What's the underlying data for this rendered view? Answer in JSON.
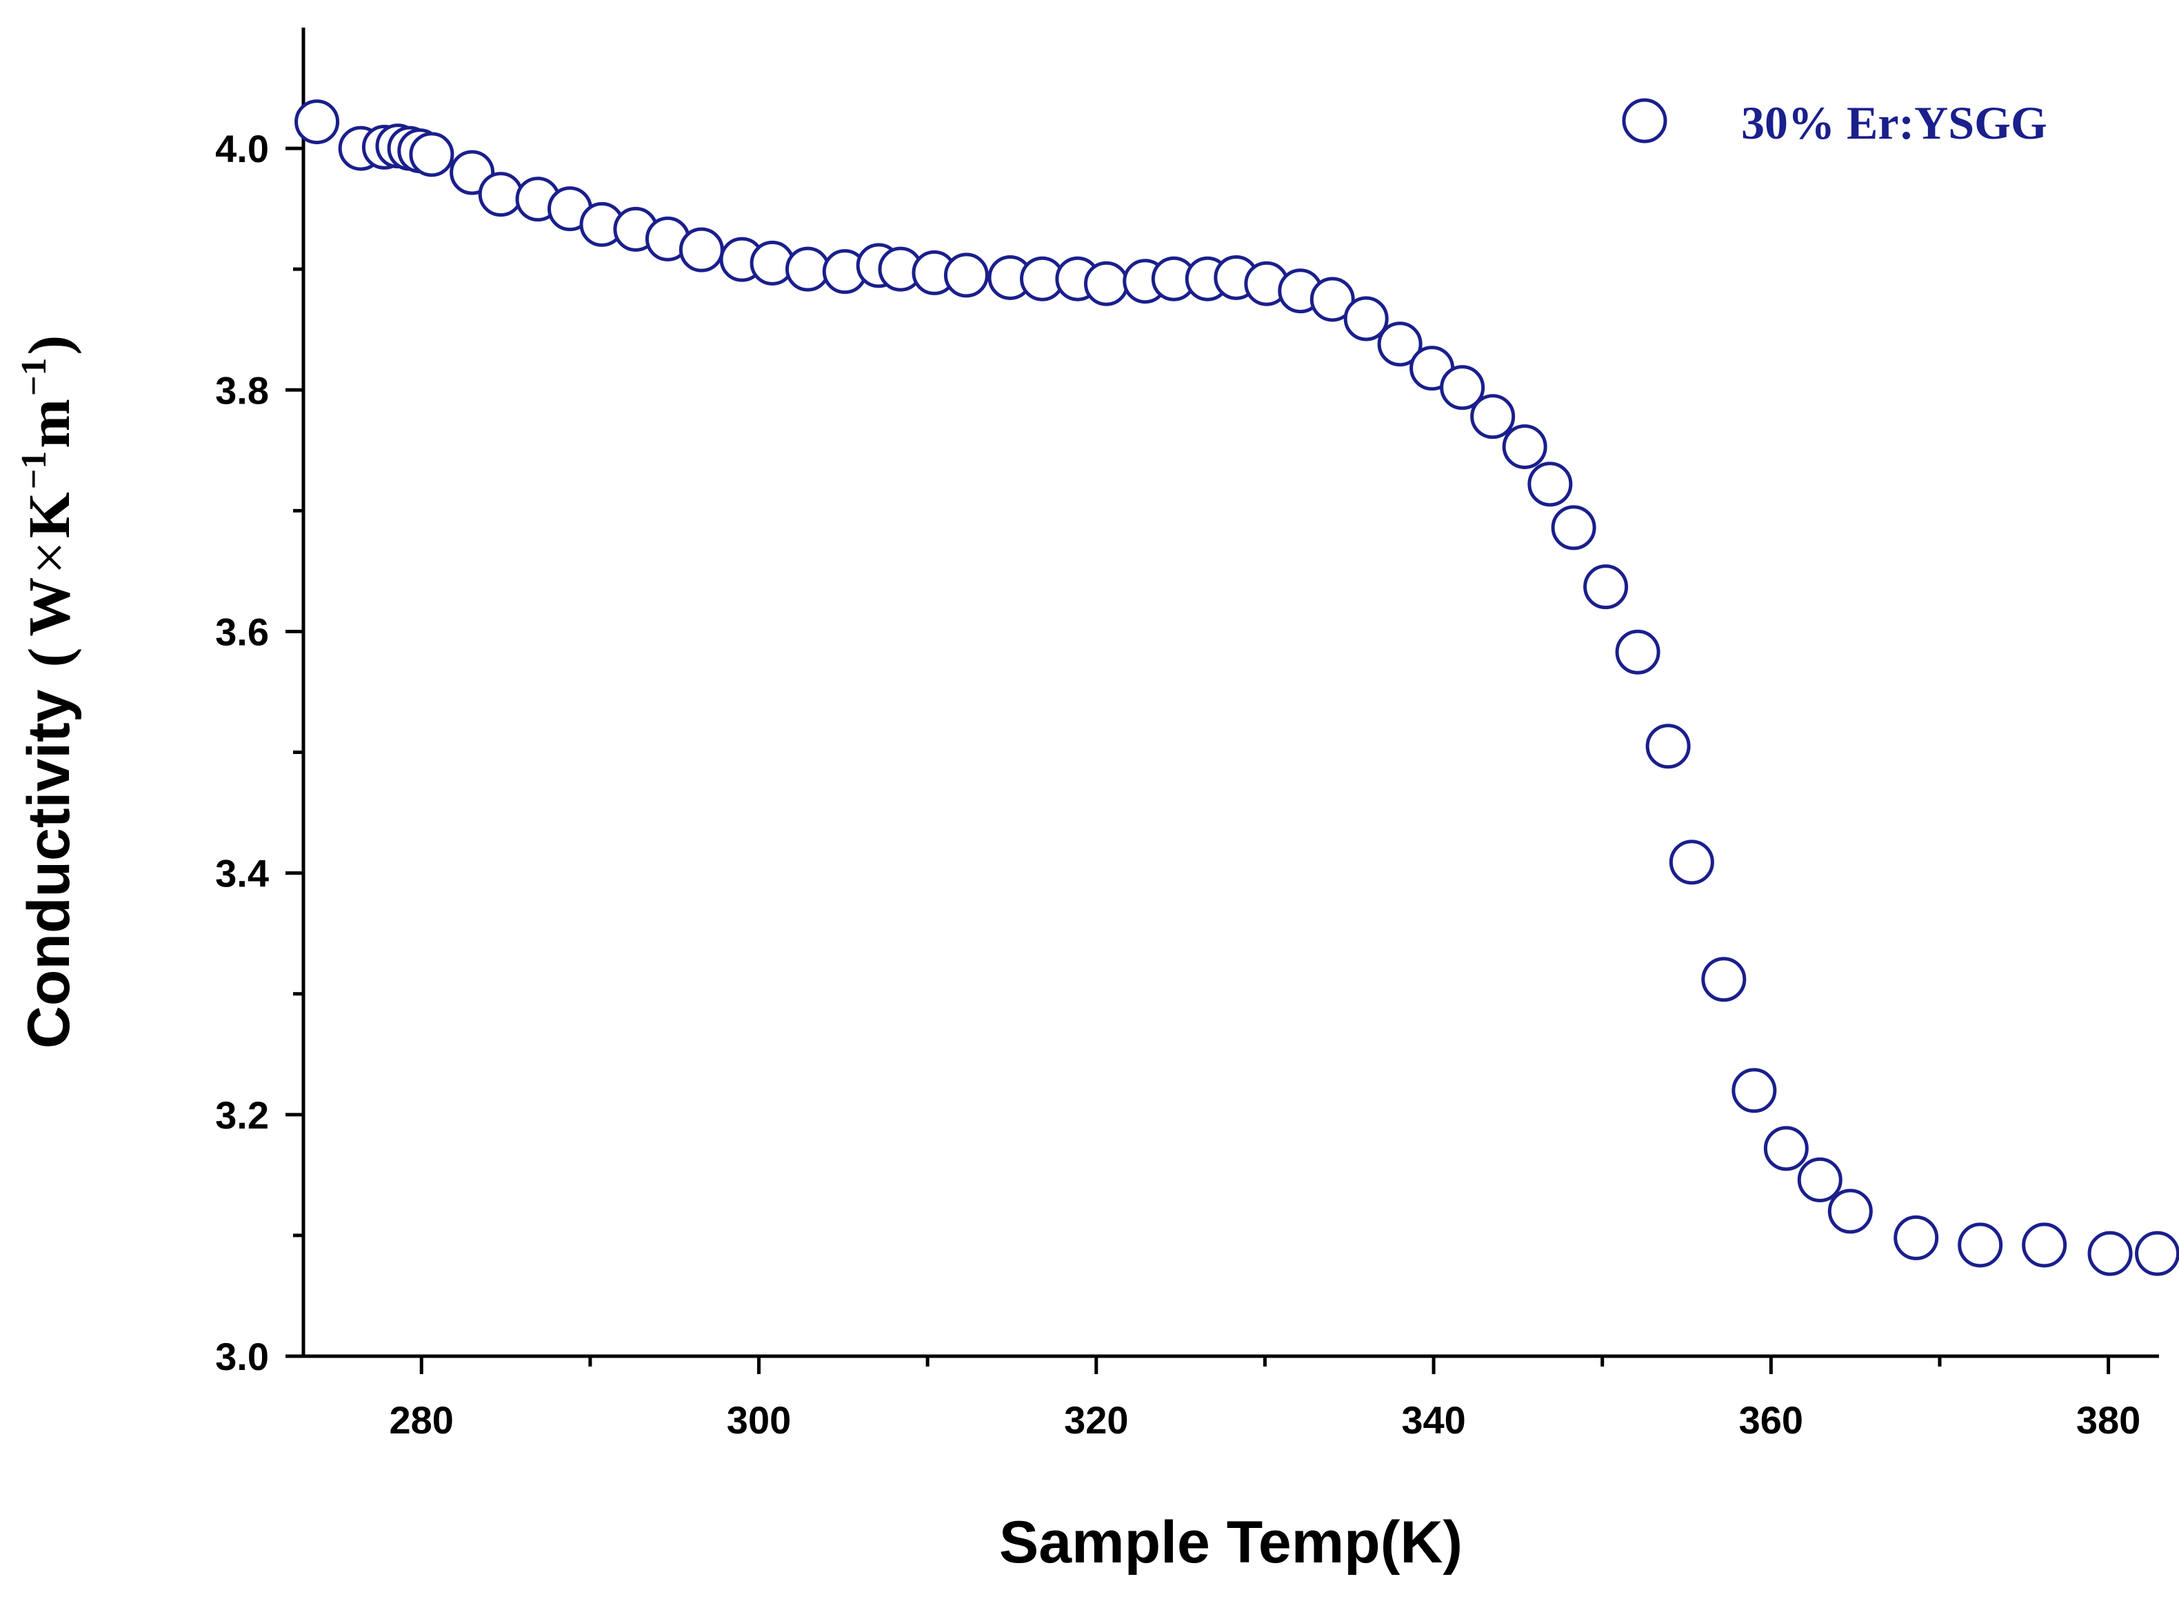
{
  "chart_data": {
    "type": "scatter",
    "title": "",
    "xlabel": "Sample Temp(K)",
    "ylabel": "Conductivity",
    "ylabel_unit": {
      "open": "(",
      "w": "W",
      "times": "×",
      "k": "K",
      "k_exp": "−1",
      "m": "m",
      "m_exp": "−1",
      "close": ")"
    },
    "xlim": [
      273,
      383
    ],
    "ylim": [
      3.0,
      4.1
    ],
    "xticks": [
      280,
      300,
      320,
      340,
      360,
      380
    ],
    "yticks": [
      3.0,
      3.2,
      3.4,
      3.6,
      3.8,
      4.0
    ],
    "ytick_labels": [
      "3.0",
      "3.2",
      "3.4",
      "3.6",
      "3.8",
      "4.0"
    ],
    "legend_position": "top-right",
    "marker_color": "#1a1f8c",
    "series": [
      {
        "name": "30% Er:YSGG",
        "marker": "open-circle",
        "x": [
          273.8,
          276.4,
          277.8,
          278.6,
          279.3,
          279.9,
          280.6,
          283.0,
          284.7,
          286.9,
          288.8,
          290.7,
          292.7,
          294.6,
          296.6,
          299.0,
          300.8,
          302.9,
          305.1,
          307.1,
          308.4,
          310.4,
          312.3,
          314.9,
          316.8,
          318.9,
          320.6,
          322.9,
          324.6,
          326.6,
          328.3,
          330.1,
          332.1,
          334.0,
          336.0,
          338.0,
          339.9,
          341.7,
          343.5,
          345.4,
          346.9,
          348.3,
          350.2,
          352.1,
          353.9,
          355.3,
          357.2,
          359.0,
          360.9,
          362.9,
          364.7,
          368.6,
          372.4,
          376.2,
          380.1,
          382.9
        ],
        "y": [
          4.022,
          4.0,
          4.001,
          4.002,
          4.0,
          3.998,
          3.995,
          3.98,
          3.962,
          3.958,
          3.95,
          3.937,
          3.933,
          3.925,
          3.916,
          3.908,
          3.905,
          3.9,
          3.898,
          3.903,
          3.9,
          3.897,
          3.895,
          3.893,
          3.892,
          3.892,
          3.888,
          3.89,
          3.892,
          3.892,
          3.893,
          3.888,
          3.882,
          3.875,
          3.859,
          3.838,
          3.818,
          3.802,
          3.778,
          3.753,
          3.722,
          3.686,
          3.637,
          3.583,
          3.505,
          3.409,
          3.312,
          3.22,
          3.172,
          3.146,
          3.12,
          3.098,
          3.092,
          3.092,
          3.085,
          3.085
        ]
      }
    ]
  }
}
